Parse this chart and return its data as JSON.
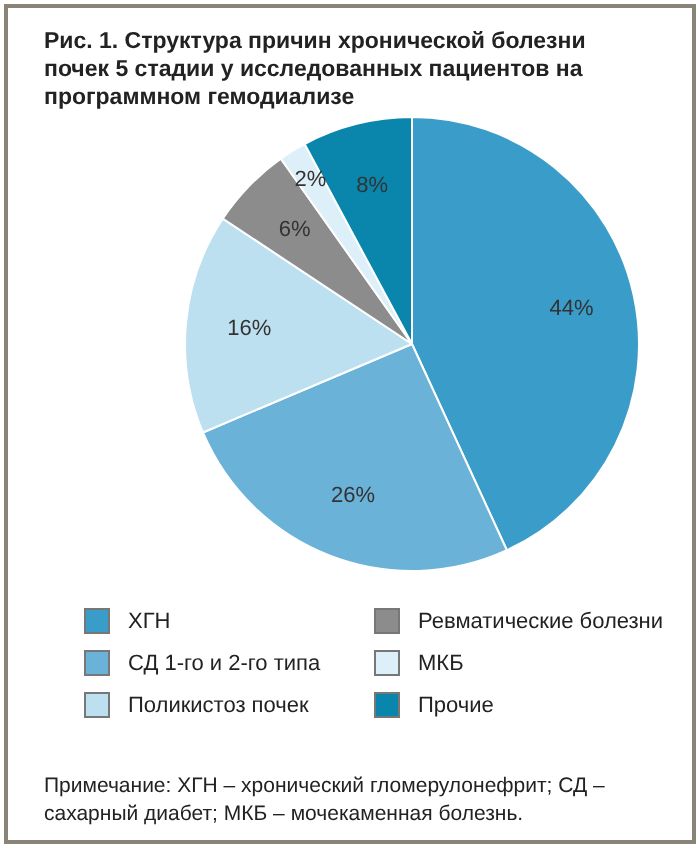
{
  "chart_data": {
    "type": "pie",
    "title": "Рис. 1. Структура причин хронической болезни почек 5 стадии у исследованных пациентов на программном гемодиализе",
    "categories": [
      "ХГН",
      "СД 1-го и 2-го типа",
      "Поликистоз почек",
      "Ревматические болезни",
      "МКБ",
      "Прочие"
    ],
    "values": [
      44,
      26,
      16,
      6,
      2,
      8
    ],
    "value_labels": [
      "44%",
      "26%",
      "16%",
      "6%",
      "2%",
      "8%"
    ],
    "colors": [
      "#3a9cc8",
      "#6bb2d8",
      "#bde0f0",
      "#8c8c8c",
      "#ddeff8",
      "#0a86ad"
    ],
    "legend": "bottom",
    "annotations": [
      "Примечание: ХГН – хронический гломерулонефрит; СД – сахарный диабет; МКБ – мочекаменная болезнь."
    ]
  }
}
